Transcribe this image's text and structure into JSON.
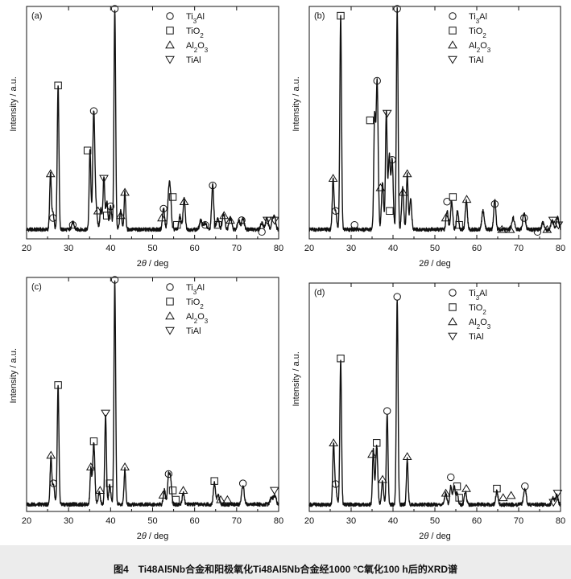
{
  "figure": {
    "caption": "图4　Ti48Al5Nb合金和阳极氧化Ti48Al5Nb合金经1000 °C氧化100 h后的XRD谱"
  },
  "colors": {
    "line": "#111111",
    "background": "#ffffff",
    "caption_bar": "#ececec"
  },
  "chart_data": [
    {
      "type": "line",
      "panel_label": "(a)",
      "xlabel": "2θ / deg",
      "ylabel": "Intensity / a.u.",
      "xlim": [
        20,
        80
      ],
      "xticks": [
        20,
        30,
        40,
        50,
        60,
        70,
        80
      ],
      "ylim": [
        0,
        100
      ],
      "baseline": 4,
      "legend": [
        {
          "symbol": "circle",
          "label": "Ti3Al"
        },
        {
          "symbol": "square",
          "label": "TiO2"
        },
        {
          "symbol": "triangle",
          "label": "Al2O3"
        },
        {
          "symbol": "triangle-down",
          "label": "TiAl"
        }
      ],
      "peaks": [
        [
          25.7,
          24,
          0.2
        ],
        [
          26.3,
          7,
          0.25
        ],
        [
          27.5,
          62,
          0.2
        ],
        [
          31,
          3,
          0.3
        ],
        [
          35.1,
          34,
          0.2
        ],
        [
          36.0,
          51,
          0.25
        ],
        [
          36.6,
          8,
          0.25
        ],
        [
          37.7,
          9,
          0.25
        ],
        [
          38.4,
          22,
          0.2
        ],
        [
          39.1,
          12,
          0.25
        ],
        [
          40.0,
          10,
          0.25
        ],
        [
          41.0,
          95,
          0.2
        ],
        [
          42.4,
          8,
          0.25
        ],
        [
          43.4,
          16,
          0.2
        ],
        [
          52.6,
          9,
          0.25
        ],
        [
          53.8,
          13,
          0.25
        ],
        [
          54.2,
          15,
          0.25
        ],
        [
          56.5,
          6,
          0.25
        ],
        [
          57.5,
          13,
          0.25
        ],
        [
          61.5,
          4,
          0.3
        ],
        [
          62.5,
          3,
          0.3
        ],
        [
          64.3,
          19,
          0.25
        ],
        [
          65.5,
          5,
          0.3
        ],
        [
          66.9,
          7,
          0.3
        ],
        [
          68.5,
          5,
          0.3
        ],
        [
          70.5,
          4,
          0.3
        ],
        [
          71.5,
          5,
          0.3
        ],
        [
          76.0,
          3,
          0.3
        ],
        [
          77.2,
          5,
          0.3
        ],
        [
          78.5,
          3,
          0.3
        ],
        [
          79.0,
          5,
          0.3
        ]
      ],
      "markers": [
        {
          "x": 41.0,
          "y": 99,
          "symbol": "circle"
        },
        {
          "x": 27.5,
          "y": 66,
          "symbol": "square"
        },
        {
          "x": 36.0,
          "y": 55,
          "symbol": "circle"
        },
        {
          "x": 34.5,
          "y": 38,
          "symbol": "square"
        },
        {
          "x": 25.7,
          "y": 28,
          "symbol": "triangle"
        },
        {
          "x": 38.4,
          "y": 26,
          "symbol": "triangle-down"
        },
        {
          "x": 40.0,
          "y": 14,
          "symbol": "circle"
        },
        {
          "x": 43.4,
          "y": 20,
          "symbol": "triangle"
        },
        {
          "x": 37.0,
          "y": 12,
          "symbol": "triangle"
        },
        {
          "x": 39.1,
          "y": 10,
          "symbol": "square"
        },
        {
          "x": 42.4,
          "y": 10,
          "symbol": "triangle"
        },
        {
          "x": 26.3,
          "y": 9,
          "symbol": "circle"
        },
        {
          "x": 31.0,
          "y": 6,
          "symbol": "circle"
        },
        {
          "x": 52.6,
          "y": 13,
          "symbol": "circle"
        },
        {
          "x": 54.8,
          "y": 18,
          "symbol": "square"
        },
        {
          "x": 52.2,
          "y": 9,
          "symbol": "triangle"
        },
        {
          "x": 55.8,
          "y": 6,
          "symbol": "square"
        },
        {
          "x": 57.5,
          "y": 16,
          "symbol": "triangle"
        },
        {
          "x": 64.3,
          "y": 23,
          "symbol": "circle"
        },
        {
          "x": 62.5,
          "y": 6,
          "symbol": "circle"
        },
        {
          "x": 65.5,
          "y": 6,
          "symbol": "square"
        },
        {
          "x": 67.0,
          "y": 10,
          "symbol": "triangle"
        },
        {
          "x": 68.5,
          "y": 8,
          "symbol": "triangle"
        },
        {
          "x": 71.2,
          "y": 8,
          "symbol": "circle"
        },
        {
          "x": 76.0,
          "y": 3,
          "symbol": "circle"
        },
        {
          "x": 77.3,
          "y": 8,
          "symbol": "triangle-down"
        },
        {
          "x": 79.0,
          "y": 8,
          "symbol": "triangle-down"
        }
      ]
    },
    {
      "type": "line",
      "panel_label": "(b)",
      "xlabel": "2θ / deg",
      "ylabel": "Intensity / a.u.",
      "xlim": [
        20,
        80
      ],
      "xticks": [
        20,
        30,
        40,
        50,
        60,
        70,
        80
      ],
      "ylim": [
        0,
        100
      ],
      "baseline": 4,
      "legend": [
        {
          "symbol": "circle",
          "label": "Ti3Al"
        },
        {
          "symbol": "square",
          "label": "TiO2"
        },
        {
          "symbol": "triangle",
          "label": "Al2O3"
        },
        {
          "symbol": "triangle-down",
          "label": "TiAl"
        }
      ],
      "peaks": [
        [
          25.7,
          22,
          0.2
        ],
        [
          26.3,
          8,
          0.25
        ],
        [
          27.5,
          92,
          0.2
        ],
        [
          35.6,
          47,
          0.2
        ],
        [
          36.2,
          64,
          0.25
        ],
        [
          37.5,
          20,
          0.25
        ],
        [
          38.4,
          50,
          0.2
        ],
        [
          39.1,
          32,
          0.25
        ],
        [
          39.8,
          30,
          0.25
        ],
        [
          41.0,
          95,
          0.2
        ],
        [
          42.3,
          18,
          0.25
        ],
        [
          43.4,
          24,
          0.2
        ],
        [
          44.2,
          13,
          0.25
        ],
        [
          52.9,
          8,
          0.25
        ],
        [
          54.0,
          12,
          0.25
        ],
        [
          55.4,
          8,
          0.25
        ],
        [
          57.5,
          12,
          0.25
        ],
        [
          61.5,
          8,
          0.3
        ],
        [
          64.3,
          13,
          0.25
        ],
        [
          68.7,
          5,
          0.3
        ],
        [
          71.3,
          7,
          0.3
        ],
        [
          75.8,
          3,
          0.3
        ],
        [
          78.0,
          4,
          0.3
        ],
        [
          79.3,
          5,
          0.3
        ]
      ],
      "markers": [
        {
          "x": 41.0,
          "y": 99,
          "symbol": "circle"
        },
        {
          "x": 27.5,
          "y": 96,
          "symbol": "square"
        },
        {
          "x": 36.2,
          "y": 68,
          "symbol": "circle"
        },
        {
          "x": 38.6,
          "y": 54,
          "symbol": "triangle-down"
        },
        {
          "x": 34.5,
          "y": 51,
          "symbol": "square"
        },
        {
          "x": 39.8,
          "y": 34,
          "symbol": "circle"
        },
        {
          "x": 25.7,
          "y": 26,
          "symbol": "triangle"
        },
        {
          "x": 43.4,
          "y": 28,
          "symbol": "triangle"
        },
        {
          "x": 26.3,
          "y": 12,
          "symbol": "circle"
        },
        {
          "x": 30.8,
          "y": 6,
          "symbol": "circle"
        },
        {
          "x": 37.0,
          "y": 22,
          "symbol": "triangle"
        },
        {
          "x": 42.4,
          "y": 20,
          "symbol": "triangle"
        },
        {
          "x": 39.2,
          "y": 12,
          "symbol": "square"
        },
        {
          "x": 52.9,
          "y": 16,
          "symbol": "circle"
        },
        {
          "x": 54.3,
          "y": 18,
          "symbol": "square"
        },
        {
          "x": 52.6,
          "y": 9,
          "symbol": "triangle"
        },
        {
          "x": 55.8,
          "y": 6,
          "symbol": "square"
        },
        {
          "x": 57.6,
          "y": 17,
          "symbol": "triangle"
        },
        {
          "x": 64.3,
          "y": 15,
          "symbol": "circle"
        },
        {
          "x": 66.0,
          "y": 4,
          "symbol": "triangle"
        },
        {
          "x": 68.0,
          "y": 4,
          "symbol": "triangle"
        },
        {
          "x": 71.3,
          "y": 9,
          "symbol": "circle"
        },
        {
          "x": 74.5,
          "y": 3,
          "symbol": "circle"
        },
        {
          "x": 76.8,
          "y": 4,
          "symbol": "triangle"
        },
        {
          "x": 78.2,
          "y": 8,
          "symbol": "triangle-down"
        },
        {
          "x": 79.5,
          "y": 6,
          "symbol": "triangle-down"
        }
      ]
    },
    {
      "type": "line",
      "panel_label": "(c)",
      "xlabel": "2θ / deg",
      "ylabel": "Intensity / a.u.",
      "xlim": [
        20,
        80
      ],
      "xticks": [
        20,
        30,
        40,
        50,
        60,
        70,
        80
      ],
      "ylim": [
        0,
        100
      ],
      "baseline": 3,
      "legend": [
        {
          "symbol": "circle",
          "label": "Ti3Al"
        },
        {
          "symbol": "square",
          "label": "TiO2"
        },
        {
          "symbol": "triangle",
          "label": "Al2O3"
        },
        {
          "symbol": "triangle-down",
          "label": "TiAl"
        }
      ],
      "peaks": [
        [
          25.8,
          20,
          0.2
        ],
        [
          26.4,
          8,
          0.25
        ],
        [
          27.5,
          50,
          0.2
        ],
        [
          35.3,
          15,
          0.2
        ],
        [
          36.0,
          26,
          0.25
        ],
        [
          37.3,
          5,
          0.25
        ],
        [
          38.8,
          38,
          0.2
        ],
        [
          39.8,
          8,
          0.25
        ],
        [
          41.0,
          95,
          0.2
        ],
        [
          43.4,
          15,
          0.2
        ],
        [
          52.8,
          6,
          0.25
        ],
        [
          53.8,
          12,
          0.25
        ],
        [
          54.3,
          10,
          0.25
        ],
        [
          57.3,
          5,
          0.25
        ],
        [
          64.7,
          9,
          0.25
        ],
        [
          65.6,
          4,
          0.3
        ],
        [
          71.5,
          8,
          0.3
        ],
        [
          78.3,
          3,
          0.3
        ],
        [
          79.1,
          4,
          0.3
        ]
      ],
      "markers": [
        {
          "x": 41.0,
          "y": 99,
          "symbol": "circle"
        },
        {
          "x": 27.5,
          "y": 54,
          "symbol": "square"
        },
        {
          "x": 38.8,
          "y": 42,
          "symbol": "triangle-down"
        },
        {
          "x": 36.0,
          "y": 30,
          "symbol": "square"
        },
        {
          "x": 25.8,
          "y": 24,
          "symbol": "triangle"
        },
        {
          "x": 35.3,
          "y": 19,
          "symbol": "triangle"
        },
        {
          "x": 26.4,
          "y": 12,
          "symbol": "circle"
        },
        {
          "x": 43.4,
          "y": 19,
          "symbol": "triangle"
        },
        {
          "x": 37.5,
          "y": 9,
          "symbol": "triangle"
        },
        {
          "x": 39.8,
          "y": 12,
          "symbol": "square"
        },
        {
          "x": 53.8,
          "y": 16,
          "symbol": "circle"
        },
        {
          "x": 54.8,
          "y": 9,
          "symbol": "square"
        },
        {
          "x": 52.5,
          "y": 7,
          "symbol": "triangle"
        },
        {
          "x": 55.5,
          "y": 5,
          "symbol": "square"
        },
        {
          "x": 57.3,
          "y": 9,
          "symbol": "triangle"
        },
        {
          "x": 64.7,
          "y": 13,
          "symbol": "square"
        },
        {
          "x": 66.2,
          "y": 5,
          "symbol": "triangle"
        },
        {
          "x": 67.8,
          "y": 5,
          "symbol": "triangle"
        },
        {
          "x": 71.5,
          "y": 12,
          "symbol": "circle"
        },
        {
          "x": 79.0,
          "y": 9,
          "symbol": "triangle-down"
        }
      ]
    },
    {
      "type": "line",
      "panel_label": "(d)",
      "xlabel": "2θ / deg",
      "ylabel": "Intensity / a.u.",
      "xlim": [
        20,
        80
      ],
      "xticks": [
        20,
        30,
        40,
        50,
        60,
        70,
        80
      ],
      "ylim": [
        0,
        100
      ],
      "baseline": 3,
      "legend": [
        {
          "symbol": "circle",
          "label": "Ti3Al"
        },
        {
          "symbol": "square",
          "label": "TiO2"
        },
        {
          "symbol": "triangle",
          "label": "Al2O3"
        },
        {
          "symbol": "triangle-down",
          "label": "TiAl"
        }
      ],
      "peaks": [
        [
          25.8,
          26,
          0.2
        ],
        [
          26.3,
          8,
          0.25
        ],
        [
          27.5,
          63,
          0.2
        ],
        [
          35.3,
          24,
          0.2
        ],
        [
          36.1,
          26,
          0.25
        ],
        [
          37.5,
          10,
          0.25
        ],
        [
          38.6,
          40,
          0.2
        ],
        [
          41.0,
          90,
          0.2
        ],
        [
          43.4,
          20,
          0.2
        ],
        [
          52.6,
          5,
          0.25
        ],
        [
          53.8,
          8,
          0.25
        ],
        [
          54.6,
          8,
          0.25
        ],
        [
          55.3,
          5,
          0.25
        ],
        [
          57.3,
          6,
          0.25
        ],
        [
          64.8,
          6,
          0.25
        ],
        [
          71.5,
          7,
          0.3
        ],
        [
          78.2,
          3,
          0.3
        ],
        [
          79.1,
          4,
          0.3
        ]
      ],
      "markers": [
        {
          "x": 41.0,
          "y": 94,
          "symbol": "circle"
        },
        {
          "x": 27.5,
          "y": 67,
          "symbol": "square"
        },
        {
          "x": 38.6,
          "y": 44,
          "symbol": "circle"
        },
        {
          "x": 25.8,
          "y": 30,
          "symbol": "triangle"
        },
        {
          "x": 36.1,
          "y": 30,
          "symbol": "square"
        },
        {
          "x": 35.0,
          "y": 25,
          "symbol": "triangle"
        },
        {
          "x": 43.4,
          "y": 24,
          "symbol": "triangle"
        },
        {
          "x": 26.3,
          "y": 12,
          "symbol": "circle"
        },
        {
          "x": 37.5,
          "y": 14,
          "symbol": "triangle"
        },
        {
          "x": 53.8,
          "y": 15,
          "symbol": "circle"
        },
        {
          "x": 55.3,
          "y": 11,
          "symbol": "square"
        },
        {
          "x": 52.6,
          "y": 8,
          "symbol": "triangle"
        },
        {
          "x": 55.8,
          "y": 6,
          "symbol": "square"
        },
        {
          "x": 57.5,
          "y": 10,
          "symbol": "triangle"
        },
        {
          "x": 64.8,
          "y": 10,
          "symbol": "square"
        },
        {
          "x": 66.3,
          "y": 6,
          "symbol": "triangle"
        },
        {
          "x": 68.2,
          "y": 7,
          "symbol": "triangle"
        },
        {
          "x": 71.5,
          "y": 11,
          "symbol": "circle"
        },
        {
          "x": 78.3,
          "y": 4,
          "symbol": "triangle-down"
        },
        {
          "x": 79.3,
          "y": 8,
          "symbol": "triangle-down"
        }
      ]
    }
  ]
}
